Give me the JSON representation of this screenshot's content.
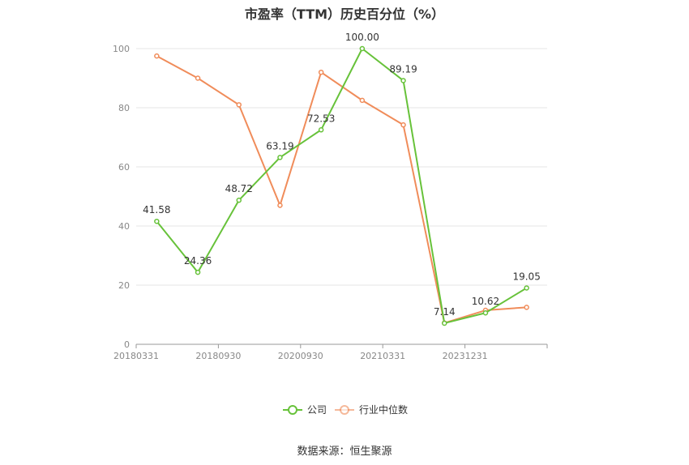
{
  "chart_data": {
    "type": "line",
    "title": "市盈率（TTM）历史百分位（%）",
    "xlabel": "",
    "ylabel": "",
    "ylim": [
      0,
      100
    ],
    "y_ticks": [
      0,
      20,
      40,
      60,
      80,
      100
    ],
    "grid": true,
    "legend_position": "bottom",
    "categories": [
      "20180331",
      "",
      "20180930",
      "",
      "20200930",
      "",
      "20210331",
      "",
      "20231231",
      ""
    ],
    "x_tick_labels": [
      "20180331",
      "20180930",
      "20200930",
      "20210331",
      "20231231"
    ],
    "series": [
      {
        "name": "公司",
        "color": "#67c23a",
        "values": [
          41.58,
          24.36,
          48.72,
          63.19,
          72.53,
          100.0,
          89.19,
          7.14,
          10.62,
          19.05
        ],
        "labels": [
          "41.58",
          "24.36",
          "48.72",
          "63.19",
          "72.53",
          "100.00",
          "89.19",
          "7.14",
          "10.62",
          "19.05"
        ]
      },
      {
        "name": "行业中位数",
        "color": "#f08c5a",
        "values": [
          97.5,
          90.0,
          81.0,
          47.0,
          92.0,
          82.5,
          74.2,
          7.2,
          11.5,
          12.5
        ]
      }
    ]
  },
  "source_text": "数据来源：恒生聚源"
}
